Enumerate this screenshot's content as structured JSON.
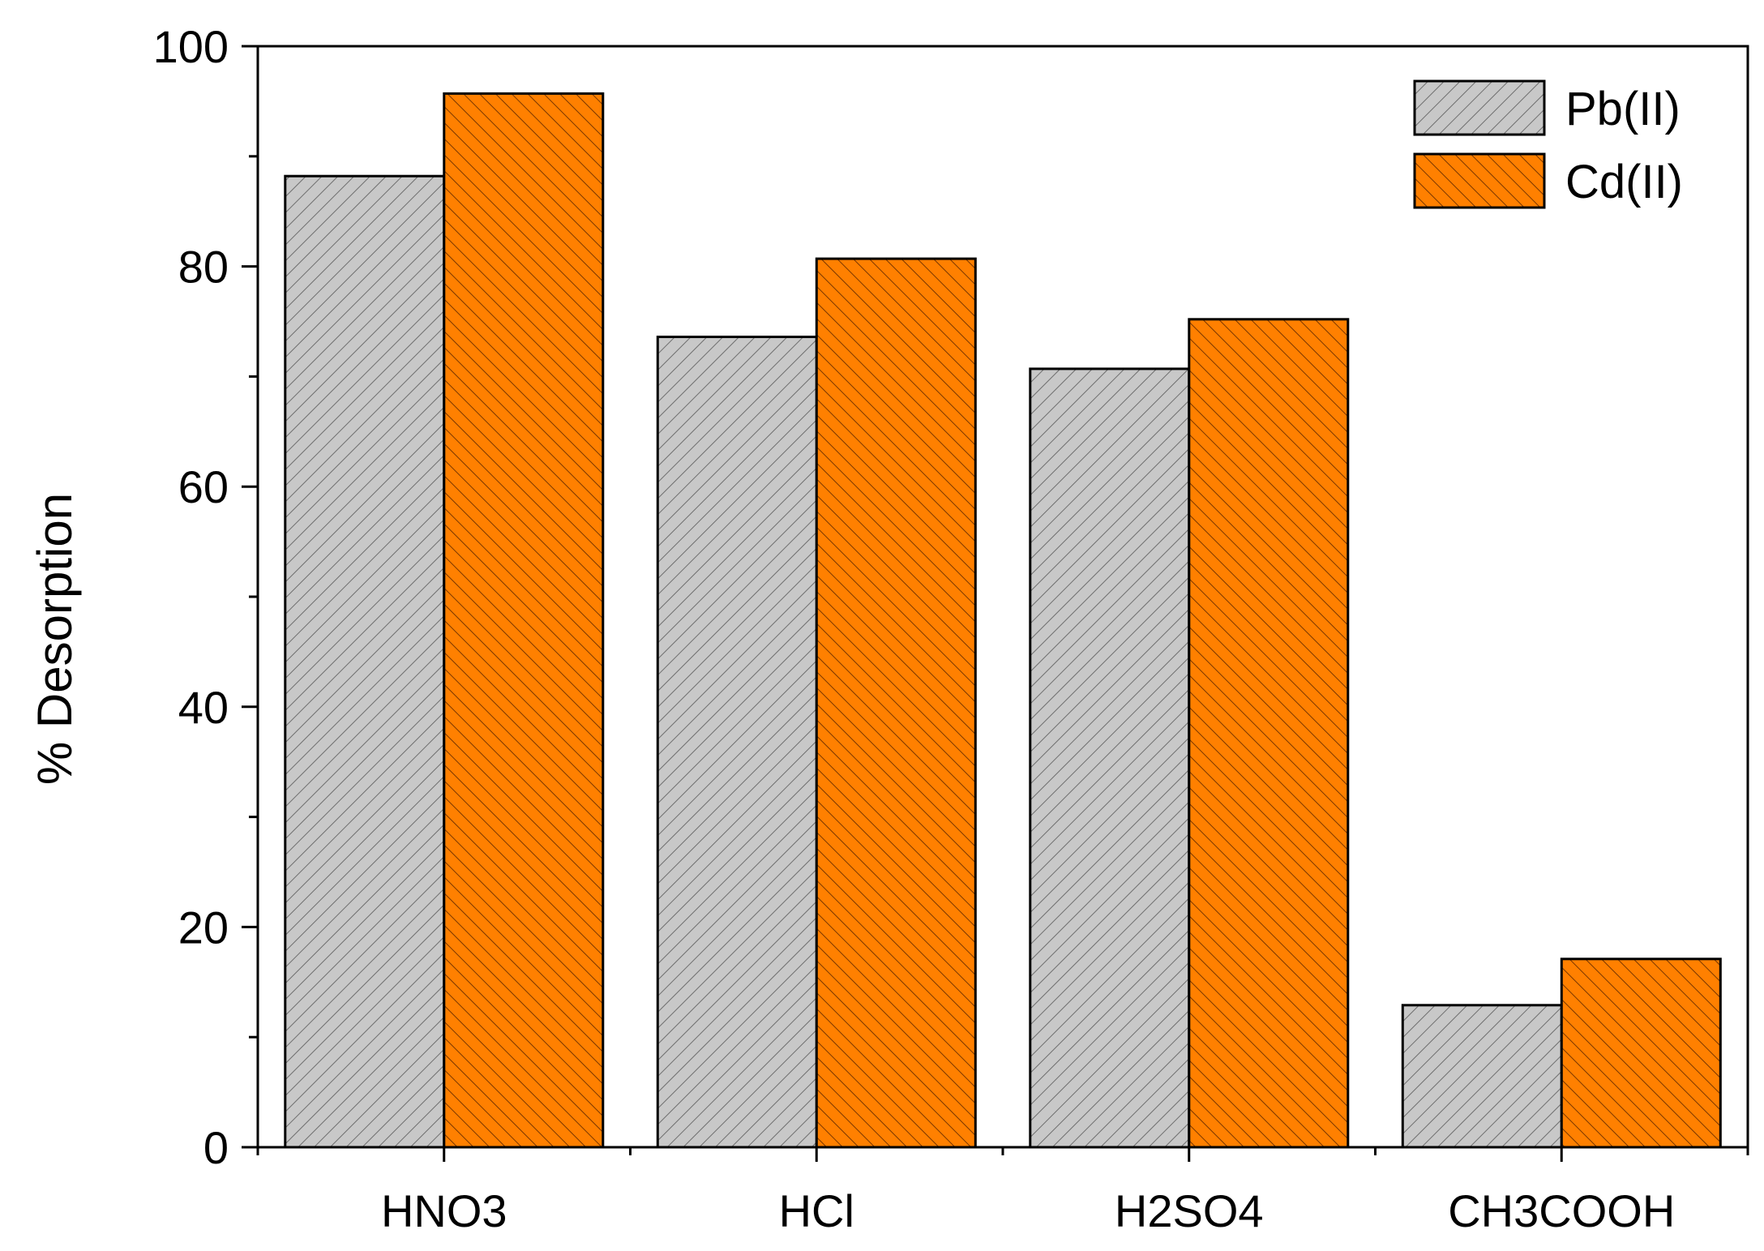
{
  "chart_data": {
    "type": "bar",
    "title": "",
    "xlabel": "",
    "ylabel": "% Desorption",
    "ylim": [
      0,
      100
    ],
    "yticks": [
      0,
      20,
      40,
      60,
      80,
      100
    ],
    "categories": [
      "HNO3",
      "HCl",
      "H2SO4",
      "CH3COOH"
    ],
    "series": [
      {
        "name": "Pb(II)",
        "values": [
          88.2,
          73.6,
          70.7,
          12.9
        ],
        "color": "#c8c8c8",
        "hatch": "forward-diagonal"
      },
      {
        "name": "Cd(II)",
        "values": [
          95.7,
          80.7,
          75.2,
          17.1
        ],
        "color": "#ff8000",
        "hatch": "backward-diagonal"
      }
    ],
    "grid": false,
    "legend_position": "top-right"
  }
}
